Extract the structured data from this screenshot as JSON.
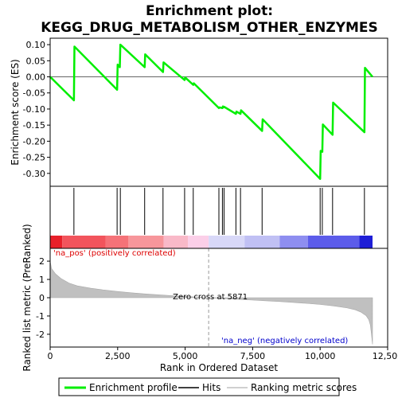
{
  "chart_data": {
    "type": "line",
    "title": "Enrichment plot: KEGG_DRUG_METABOLISM_OTHER_ENZYMES",
    "title_lines": [
      "Enrichment plot:",
      "KEGG_DRUG_METABOLISM_OTHER_ENZYMES"
    ],
    "panels": {
      "enrichment": {
        "ylabel": "Enrichment score (ES)",
        "ylim": [
          -0.34,
          0.12
        ],
        "yticks": [
          0.1,
          0.05,
          0.0,
          -0.05,
          -0.1,
          -0.15,
          -0.2,
          -0.25,
          -0.3
        ],
        "ytick_labels": [
          "0.10",
          "0.05",
          "0.00",
          "-0.05",
          "-0.10",
          "-0.15",
          "-0.20",
          "-0.25",
          "-0.30"
        ],
        "line_color": "#00ee00",
        "series": [
          {
            "name": "Enrichment profile",
            "x": [
              0,
              880,
              900,
              2480,
              2500,
              2580,
              2600,
              3500,
              3520,
              4180,
              4200,
              4980,
              5000,
              5300,
              5320,
              6250,
              6270,
              6380,
              6400,
              6420,
              6440,
              6880,
              6900,
              7050,
              7070,
              7850,
              7870,
              10000,
              10020,
              10080,
              10100,
              10460,
              10480,
              11640,
              11660,
              11940
            ],
            "y": [
              0.0,
              -0.073,
              0.094,
              -0.04,
              0.038,
              0.03,
              0.1,
              0.03,
              0.07,
              0.015,
              0.045,
              -0.01,
              -0.002,
              -0.025,
              -0.02,
              -0.097,
              -0.095,
              -0.097,
              -0.092,
              -0.095,
              -0.093,
              -0.115,
              -0.108,
              -0.115,
              -0.104,
              -0.168,
              -0.132,
              -0.317,
              -0.23,
              -0.233,
              -0.148,
              -0.18,
              -0.08,
              -0.172,
              0.028,
              0.0
            ]
          }
        ]
      },
      "hits": {
        "hit_positions": [
          880,
          2480,
          2600,
          3500,
          4180,
          4980,
          5300,
          6250,
          6380,
          6440,
          6880,
          7050,
          7850,
          10000,
          10080,
          10460,
          11640
        ]
      },
      "ranking": {
        "ylabel": "Ranked list metric (PreRanked)",
        "xlabel": "Rank in Ordered Dataset",
        "xlim": [
          0,
          12500
        ],
        "xticks": [
          0,
          2500,
          5000,
          7500,
          10000,
          12500
        ],
        "xtick_labels": [
          "0",
          "2,500",
          "5,000",
          "7,500",
          "10,000",
          "12,500"
        ],
        "ylim": [
          -2.7,
          2.7
        ],
        "yticks": [
          2,
          1,
          0,
          -1,
          -2
        ],
        "ytick_labels": [
          "2",
          "1",
          "0",
          "-1",
          "-2"
        ],
        "n_genes": 11940,
        "zero_cross": 5871,
        "zero_cross_label": "Zero cross at 5871",
        "pos_label": "'na_pos' (positively correlated)",
        "neg_label": "'na_neg' (negatively correlated)",
        "pos_color": "#dd0000",
        "neg_color": "#0000cc",
        "fill_color": "#c0c0c0",
        "metric_profile": {
          "x": [
            0,
            50,
            200,
            400,
            700,
            1000,
            1500,
            2000,
            2500,
            3000,
            3500,
            4000,
            4500,
            5000,
            5500,
            5871,
            6500,
            7000,
            7500,
            8000,
            8500,
            9000,
            9500,
            10000,
            10500,
            11000,
            11300,
            11500,
            11700,
            11800,
            11860,
            11900,
            11940
          ],
          "y": [
            2.0,
            1.6,
            1.3,
            1.05,
            0.8,
            0.65,
            0.52,
            0.42,
            0.34,
            0.27,
            0.21,
            0.16,
            0.11,
            0.07,
            0.03,
            0.0,
            -0.05,
            -0.09,
            -0.13,
            -0.17,
            -0.21,
            -0.26,
            -0.31,
            -0.37,
            -0.45,
            -0.56,
            -0.66,
            -0.78,
            -0.98,
            -1.2,
            -1.5,
            -2.0,
            -2.55
          ]
        }
      },
      "heatmap": {
        "segments": [
          {
            "x0": 0,
            "x1": 450,
            "color": "#e8202a"
          },
          {
            "x0": 450,
            "x1": 2050,
            "color": "#f2545c"
          },
          {
            "x0": 2050,
            "x1": 2900,
            "color": "#f57278"
          },
          {
            "x0": 2900,
            "x1": 4200,
            "color": "#f7969b"
          },
          {
            "x0": 4200,
            "x1": 5100,
            "color": "#f9b9c8"
          },
          {
            "x0": 5100,
            "x1": 5871,
            "color": "#fbcfe8"
          },
          {
            "x0": 5871,
            "x1": 7200,
            "color": "#d8d8f8"
          },
          {
            "x0": 7200,
            "x1": 8500,
            "color": "#c0c0f4"
          },
          {
            "x0": 8500,
            "x1": 9550,
            "color": "#8e8ef0"
          },
          {
            "x0": 9550,
            "x1": 11450,
            "color": "#5c5cea"
          },
          {
            "x0": 11450,
            "x1": 11940,
            "color": "#1e1ed6"
          }
        ]
      }
    },
    "legend": [
      {
        "label": "Enrichment profile",
        "color": "#00ee00",
        "style": "thick-line"
      },
      {
        "label": "Hits",
        "color": "#000000",
        "style": "line"
      },
      {
        "label": "Ranking metric scores",
        "color": "#c0c0c0",
        "style": "line"
      }
    ]
  }
}
